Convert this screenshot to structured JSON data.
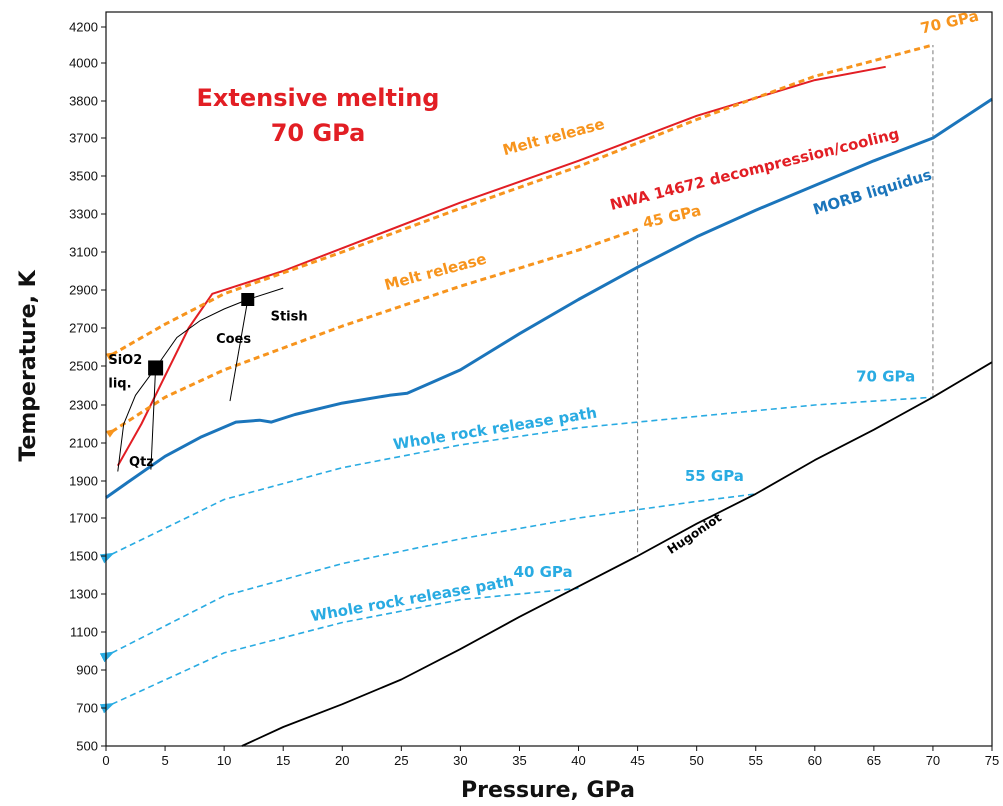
{
  "chart_data": {
    "type": "line",
    "title": "Extensive melting",
    "subtitle": "70 GPa",
    "xlabel": "Pressure, GPa",
    "ylabel": "Temperature, K",
    "xlim": [
      0,
      75
    ],
    "ylim": [
      500,
      4300
    ],
    "x_ticks": [
      0,
      5,
      10,
      15,
      20,
      25,
      30,
      35,
      40,
      45,
      50,
      55,
      60,
      65,
      70,
      75
    ],
    "y_ticks": [
      500,
      700,
      900,
      1100,
      1300,
      1500,
      1700,
      1900,
      2100,
      2300,
      2500,
      2700,
      2900,
      3100,
      3300,
      3500,
      3700,
      3800,
      4000,
      4200
    ],
    "grid": false,
    "colors": {
      "title": "#e21e24",
      "morb": "#1b75bb",
      "nwa": "#e21e24",
      "melt_release": "#f7941d",
      "whole_rock": "#29abe2",
      "hugoniot": "#000000",
      "phase": "#000000",
      "guide": "#777777"
    },
    "series": [
      {
        "name": "MORB liquidus",
        "color": "#1b75bb",
        "style": "solid",
        "x": [
          0,
          2,
          5,
          8,
          11,
          13,
          14,
          16,
          20,
          24,
          25.5,
          30,
          35,
          40,
          45,
          50,
          55,
          60,
          65,
          70,
          75
        ],
        "y": [
          1810,
          1900,
          2030,
          2130,
          2210,
          2220,
          2210,
          2250,
          2310,
          2350,
          2360,
          2480,
          2670,
          2850,
          3020,
          3180,
          3320,
          3450,
          3580,
          3700,
          3810
        ]
      },
      {
        "name": "NWA 14672 decompression/cooling",
        "color": "#e21e24",
        "style": "solid",
        "x": [
          1,
          3,
          5,
          7,
          9,
          11,
          15,
          20,
          30,
          40,
          50,
          60,
          66
        ],
        "y": [
          1980,
          2200,
          2450,
          2700,
          2880,
          2920,
          3000,
          3120,
          3360,
          3580,
          3760,
          3910,
          3980
        ]
      },
      {
        "name": "Melt release",
        "color": "#f7941d",
        "style": "dashed",
        "arrow": "start",
        "x": [
          0.5,
          5,
          10,
          20,
          30,
          40,
          50,
          60,
          70
        ],
        "y": [
          2560,
          2720,
          2880,
          3100,
          3330,
          3550,
          3750,
          3930,
          4100
        ]
      },
      {
        "name": "Melt release",
        "color": "#f7941d",
        "style": "dashed",
        "arrow": "start",
        "x": [
          0.5,
          5,
          10,
          20,
          30,
          40,
          45
        ],
        "y": [
          2160,
          2340,
          2480,
          2710,
          2920,
          3110,
          3220
        ]
      },
      {
        "name": "Whole rock release path",
        "color": "#29abe2",
        "style": "dashed",
        "arrow": "start",
        "x": [
          0.5,
          10,
          20,
          30,
          40,
          50,
          60,
          70
        ],
        "y": [
          1510,
          1800,
          1970,
          2090,
          2180,
          2240,
          2300,
          2340
        ]
      },
      {
        "name": "Whole rock release path",
        "color": "#29abe2",
        "style": "dashed",
        "arrow": "start",
        "x": [
          0.5,
          10,
          20,
          30,
          40,
          50,
          55
        ],
        "y": [
          990,
          1290,
          1460,
          1590,
          1700,
          1790,
          1830
        ]
      },
      {
        "name": "Whole rock release path",
        "color": "#29abe2",
        "style": "dashed",
        "arrow": "start",
        "x": [
          0.5,
          10,
          20,
          30,
          40
        ],
        "y": [
          720,
          990,
          1150,
          1270,
          1330
        ]
      },
      {
        "name": "Hugoniot",
        "color": "#000000",
        "style": "solid",
        "x": [
          11.5,
          15,
          20,
          25,
          30,
          35,
          40,
          45,
          50,
          55,
          60,
          65,
          70,
          75
        ],
        "y": [
          500,
          600,
          720,
          850,
          1010,
          1180,
          1340,
          1500,
          1670,
          1830,
          2010,
          2170,
          2340,
          2520
        ]
      }
    ],
    "phase_boundaries": [
      {
        "x": [
          1,
          1.5,
          2.5,
          4.2
        ],
        "y": [
          1950,
          2200,
          2350,
          2490
        ]
      },
      {
        "x": [
          4.2,
          6,
          8,
          10,
          12
        ],
        "y": [
          2490,
          2650,
          2740,
          2800,
          2850
        ]
      },
      {
        "x": [
          12,
          15
        ],
        "y": [
          2850,
          2910
        ]
      },
      {
        "x": [
          4.2,
          3.8
        ],
        "y": [
          2490,
          1960
        ]
      },
      {
        "x": [
          12,
          10.5
        ],
        "y": [
          2850,
          2320
        ]
      }
    ],
    "phase_markers": [
      {
        "x": 4.2,
        "y": 2490
      },
      {
        "x": 12,
        "y": 2850
      }
    ],
    "guide_lines": [
      {
        "x": 45,
        "y1": 1520,
        "y2": 3220
      },
      {
        "x": 70,
        "y1": 2340,
        "y2": 4100
      }
    ],
    "annotations": [
      {
        "text": "70 GPa",
        "x": 71.5,
        "y": 4200,
        "color": "#f7941d",
        "size": 15,
        "angle": -13,
        "anchor": "middle"
      },
      {
        "text": "45 GPa",
        "x": 48,
        "y": 3260,
        "color": "#f7941d",
        "size": 15,
        "angle": -13,
        "anchor": "middle"
      },
      {
        "text": "Melt release",
        "x": 38,
        "y": 3680,
        "color": "#f7941d",
        "size": 15,
        "angle": -15,
        "anchor": "middle"
      },
      {
        "text": "Melt release",
        "x": 28,
        "y": 2970,
        "color": "#f7941d",
        "size": 15,
        "angle": -15,
        "anchor": "middle"
      },
      {
        "text": "NWA 14672 decompression/cooling",
        "x": 55,
        "y": 3510,
        "color": "#e21e24",
        "size": 15,
        "angle": -14,
        "anchor": "middle"
      },
      {
        "text": "MORB liquidus",
        "x": 65,
        "y": 3390,
        "color": "#1b75bb",
        "size": 15,
        "angle": -17,
        "anchor": "middle"
      },
      {
        "text": "70 GPa",
        "x": 66,
        "y": 2420,
        "color": "#29abe2",
        "size": 15,
        "angle": 0,
        "anchor": "middle"
      },
      {
        "text": "55 GPa",
        "x": 51.5,
        "y": 1900,
        "color": "#29abe2",
        "size": 15,
        "angle": 0,
        "anchor": "middle"
      },
      {
        "text": "40 GPa",
        "x": 37,
        "y": 1390,
        "color": "#29abe2",
        "size": 15,
        "angle": 0,
        "anchor": "middle"
      },
      {
        "text": "Whole rock release path",
        "x": 33,
        "y": 2150,
        "color": "#29abe2",
        "size": 15,
        "angle": -9,
        "anchor": "middle"
      },
      {
        "text": "Whole rock release path",
        "x": 26,
        "y": 1250,
        "color": "#29abe2",
        "size": 15,
        "angle": -10,
        "anchor": "middle"
      },
      {
        "text": "Hugoniot",
        "x": 50,
        "y": 1600,
        "color": "#000000",
        "size": 12,
        "angle": -34,
        "anchor": "middle"
      },
      {
        "text": "SiO2",
        "x": 0.2,
        "y": 2510,
        "color": "#000000",
        "size": 13,
        "angle": 0,
        "anchor": "start"
      },
      {
        "text": "liq.",
        "x": 0.2,
        "y": 2390,
        "color": "#000000",
        "size": 13,
        "angle": 0,
        "anchor": "start"
      },
      {
        "text": "Coes",
        "x": 10.8,
        "y": 2620,
        "color": "#000000",
        "size": 13,
        "angle": 0,
        "anchor": "middle"
      },
      {
        "text": "Stish",
        "x": 15.5,
        "y": 2740,
        "color": "#000000",
        "size": 13,
        "angle": 0,
        "anchor": "middle"
      },
      {
        "text": "Qtz",
        "x": 3,
        "y": 1980,
        "color": "#000000",
        "size": 13,
        "angle": 0,
        "anchor": "middle"
      }
    ]
  }
}
